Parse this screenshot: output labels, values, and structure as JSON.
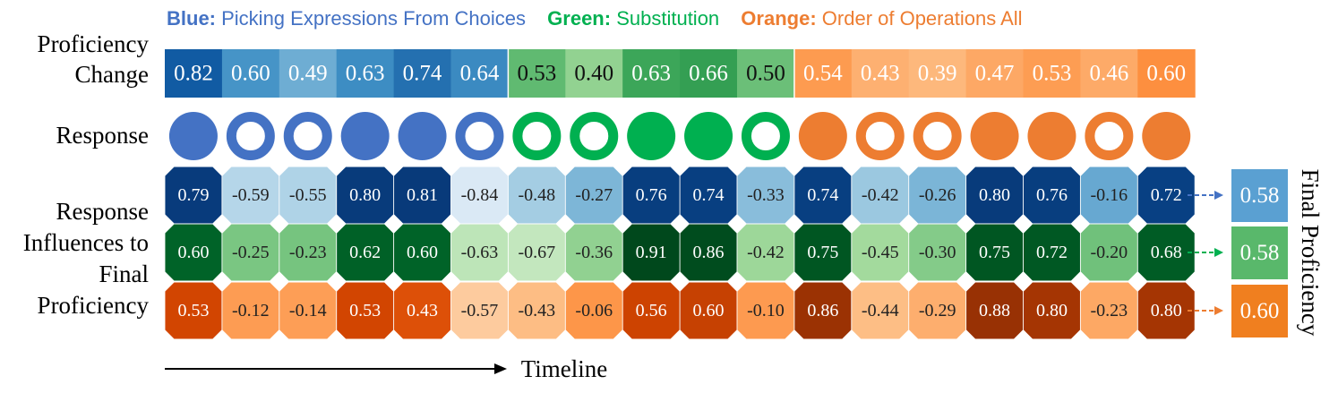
{
  "legend": [
    {
      "key": "Blue:",
      "text": "Picking Expressions From Choices",
      "color": "#4472c4"
    },
    {
      "key": "Green:",
      "text": "Substitution",
      "color": "#00b050"
    },
    {
      "key": "Orange:",
      "text": "Order of Operations All",
      "color": "#ed7d31"
    }
  ],
  "labels": {
    "proficiency_change_1": "Proficiency",
    "proficiency_change_2": "Change",
    "response": "Response",
    "influences_1": "Response",
    "influences_2": "Influences to",
    "influences_3": "Final",
    "influences_4": "Proficiency",
    "timeline": "Timeline",
    "final_proficiency": "Final Proficiency"
  },
  "proficiency_change": {
    "values": [
      "0.82",
      "0.60",
      "0.49",
      "0.63",
      "0.74",
      "0.64",
      "0.53",
      "0.40",
      "0.63",
      "0.66",
      "0.50",
      "0.54",
      "0.43",
      "0.39",
      "0.47",
      "0.53",
      "0.46",
      "0.60"
    ],
    "group": [
      "blue",
      "blue",
      "blue",
      "blue",
      "blue",
      "blue",
      "green",
      "green",
      "green",
      "green",
      "green",
      "orange",
      "orange",
      "orange",
      "orange",
      "orange",
      "orange",
      "orange"
    ]
  },
  "responses": {
    "correct": [
      true,
      false,
      false,
      true,
      true,
      false,
      false,
      false,
      true,
      true,
      false,
      true,
      false,
      false,
      true,
      true,
      false,
      true
    ]
  },
  "influences": {
    "blue": [
      "0.79",
      "-0.59",
      "-0.55",
      "0.80",
      "0.81",
      "-0.84",
      "-0.48",
      "-0.27",
      "0.76",
      "0.74",
      "-0.33",
      "0.74",
      "-0.42",
      "-0.26",
      "0.80",
      "0.76",
      "-0.16",
      "0.72"
    ],
    "green": [
      "0.60",
      "-0.25",
      "-0.23",
      "0.62",
      "0.60",
      "-0.63",
      "-0.67",
      "-0.36",
      "0.91",
      "0.86",
      "-0.42",
      "0.75",
      "-0.45",
      "-0.30",
      "0.75",
      "0.72",
      "-0.20",
      "0.68"
    ],
    "orange": [
      "0.53",
      "-0.12",
      "-0.14",
      "0.53",
      "0.43",
      "-0.57",
      "-0.43",
      "-0.06",
      "0.56",
      "0.60",
      "-0.10",
      "0.86",
      "-0.44",
      "-0.29",
      "0.88",
      "0.80",
      "-0.23",
      "0.80"
    ]
  },
  "final_proficiency": {
    "blue": "0.58",
    "green": "0.58",
    "orange": "0.60"
  },
  "colors": {
    "blue": "#4472c4",
    "green": "#00b050",
    "orange": "#ed7d31"
  }
}
